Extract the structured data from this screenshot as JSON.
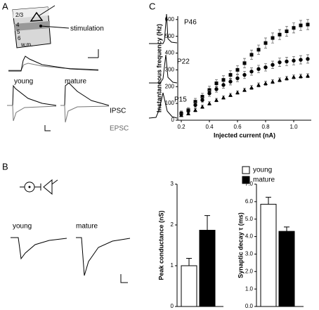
{
  "labels": {
    "panel_a": "A",
    "panel_b": "B",
    "panel_c": "C",
    "stimulation": "stimulation",
    "layers": [
      "2/3",
      "4",
      "5",
      "6",
      "w.m."
    ],
    "young_a": "young",
    "mature_a": "mature",
    "ipsc": "IPSC",
    "epsc": "EPSC",
    "young_b": "young",
    "mature_b": "mature",
    "ages": [
      "P46",
      "P22",
      "P15"
    ]
  },
  "chart_data": [
    {
      "type": "scatter",
      "xlabel": "Injected current (nA)",
      "ylabel": "Instantaneous frequency (Hz)",
      "x": [
        0.2,
        0.25,
        0.3,
        0.35,
        0.4,
        0.45,
        0.5,
        0.55,
        0.6,
        0.65,
        0.7,
        0.75,
        0.8,
        0.85,
        0.9,
        0.95,
        1.0,
        1.05,
        1.1
      ],
      "xlim": [
        0.175,
        1.125
      ],
      "xticks": [
        0.2,
        0.4,
        0.6,
        0.8,
        {
          "value": 1,
          "label": "1.0"
        }
      ],
      "ylim": [
        0,
        620
      ],
      "yticks": [
        0,
        100,
        200,
        300,
        400,
        500,
        600
      ],
      "series": [
        {
          "marker": "square",
          "color": "#000000",
          "values": [
            40,
            60,
            110,
            140,
            180,
            220,
            240,
            270,
            300,
            340,
            390,
            420,
            460,
            490,
            510,
            530,
            550,
            565,
            570
          ],
          "errors": [
            15,
            15,
            20,
            20,
            22,
            22,
            25,
            25,
            25,
            28,
            28,
            28,
            30,
            30,
            30,
            30,
            30,
            30,
            30
          ]
        },
        {
          "marker": "circle",
          "color": "#000000",
          "values": [
            40,
            55,
            90,
            120,
            160,
            185,
            210,
            230,
            250,
            270,
            290,
            305,
            315,
            330,
            345,
            350,
            355,
            360,
            365
          ],
          "errors": [
            12,
            12,
            15,
            15,
            18,
            18,
            20,
            20,
            20,
            22,
            22,
            22,
            22,
            22,
            25,
            25,
            25,
            25,
            25
          ]
        },
        {
          "marker": "triangle",
          "color": "#000000",
          "values": [
            30,
            40,
            60,
            80,
            100,
            120,
            135,
            150,
            165,
            180,
            195,
            210,
            220,
            230,
            240,
            250,
            258,
            262,
            265
          ],
          "errors": [
            8,
            8,
            10,
            10,
            10,
            10,
            10,
            10,
            10,
            10,
            12,
            12,
            12,
            12,
            12,
            12,
            12,
            12,
            12
          ]
        }
      ]
    },
    {
      "type": "bar",
      "ylabel": "Peak conductance (nS)",
      "ylim": [
        0,
        3
      ],
      "yticks": [
        0,
        1,
        2,
        3
      ],
      "values": [
        1.0,
        1.87
      ],
      "errors": [
        0.18,
        0.36
      ],
      "colors": [
        "#ffffff",
        "#000000"
      ]
    },
    {
      "type": "bar",
      "ylabel": "Synaptic decay τ (ms)",
      "ylim": [
        0,
        7
      ],
      "yticks": [
        {
          "value": 0,
          "label": "0.0"
        },
        {
          "value": 1,
          "label": "1.0"
        },
        {
          "value": 2,
          "label": "2.0"
        },
        {
          "value": 3,
          "label": "3.0"
        },
        {
          "value": 4,
          "label": "4.0"
        },
        {
          "value": 5,
          "label": "5.0"
        },
        {
          "value": 6,
          "label": "6.0"
        },
        {
          "value": 7,
          "label": "7.0"
        }
      ],
      "values": [
        5.85,
        4.3
      ],
      "errors": [
        0.4,
        0.25
      ],
      "colors": [
        "#ffffff",
        "#000000"
      ],
      "legend": [
        {
          "label": "young",
          "color": "#ffffff"
        },
        {
          "label": "mature",
          "color": "#000000"
        }
      ]
    }
  ]
}
